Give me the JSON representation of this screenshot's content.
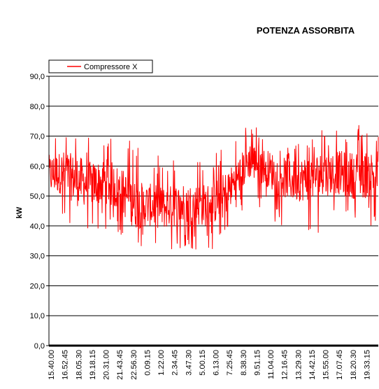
{
  "chart_data": {
    "type": "line",
    "title": "POTENZA ASSORBITA",
    "ylabel": "kW",
    "xlabel": "",
    "ylim": [
      0,
      90
    ],
    "y_ticks": [
      "0,0",
      "10,0",
      "20,0",
      "30,0",
      "40,0",
      "50,0",
      "60,0",
      "70,0",
      "80,0",
      "90,0"
    ],
    "x_ticks": [
      "15.40.00",
      "16.52.45",
      "18.05.30",
      "19.18.15",
      "20.31.00",
      "21.43.45",
      "22.56.30",
      "0.09.15",
      "1.22.00",
      "2.34.45",
      "3.47.30",
      "5.00.15",
      "6.13.00",
      "7.25.45",
      "8.38.30",
      "9.51.15",
      "11.04.00",
      "12.16.45",
      "13.29.30",
      "14.42.15",
      "15.55.00",
      "17.07.45",
      "18.20.30",
      "19.33.15"
    ],
    "grid": true,
    "legend_position": "top-left",
    "series": [
      {
        "name": "Compressore X",
        "color": "#ff0000",
        "profile": {
          "x": [
            "15.40.00",
            "16.52.45",
            "18.05.30",
            "19.18.15",
            "20.31.00",
            "21.43.45",
            "22.56.30",
            "0.09.15",
            "1.22.00",
            "2.34.45",
            "3.47.30",
            "5.00.15",
            "6.13.00",
            "7.25.45",
            "8.38.30",
            "9.51.15",
            "11.04.00",
            "12.16.45",
            "13.29.30",
            "14.42.15",
            "15.55.00",
            "17.07.45",
            "18.20.30",
            "19.33.15"
          ],
          "mean": [
            57,
            58,
            55,
            54,
            55,
            52,
            47,
            47,
            46,
            47,
            47,
            47,
            49,
            55,
            62,
            60,
            57,
            55,
            56,
            57,
            58,
            57,
            57,
            58
          ],
          "low": [
            42,
            40,
            37,
            36,
            38,
            37,
            32,
            33,
            32,
            31,
            32,
            32,
            32,
            41,
            48,
            45,
            40,
            36,
            36,
            38,
            40,
            40,
            38,
            40
          ],
          "high": [
            72,
            72,
            75,
            68,
            72,
            72,
            68,
            65,
            64,
            63,
            64,
            64,
            66,
            70,
            76,
            72,
            70,
            67,
            70,
            72,
            72,
            75,
            74,
            75
          ]
        }
      }
    ]
  }
}
